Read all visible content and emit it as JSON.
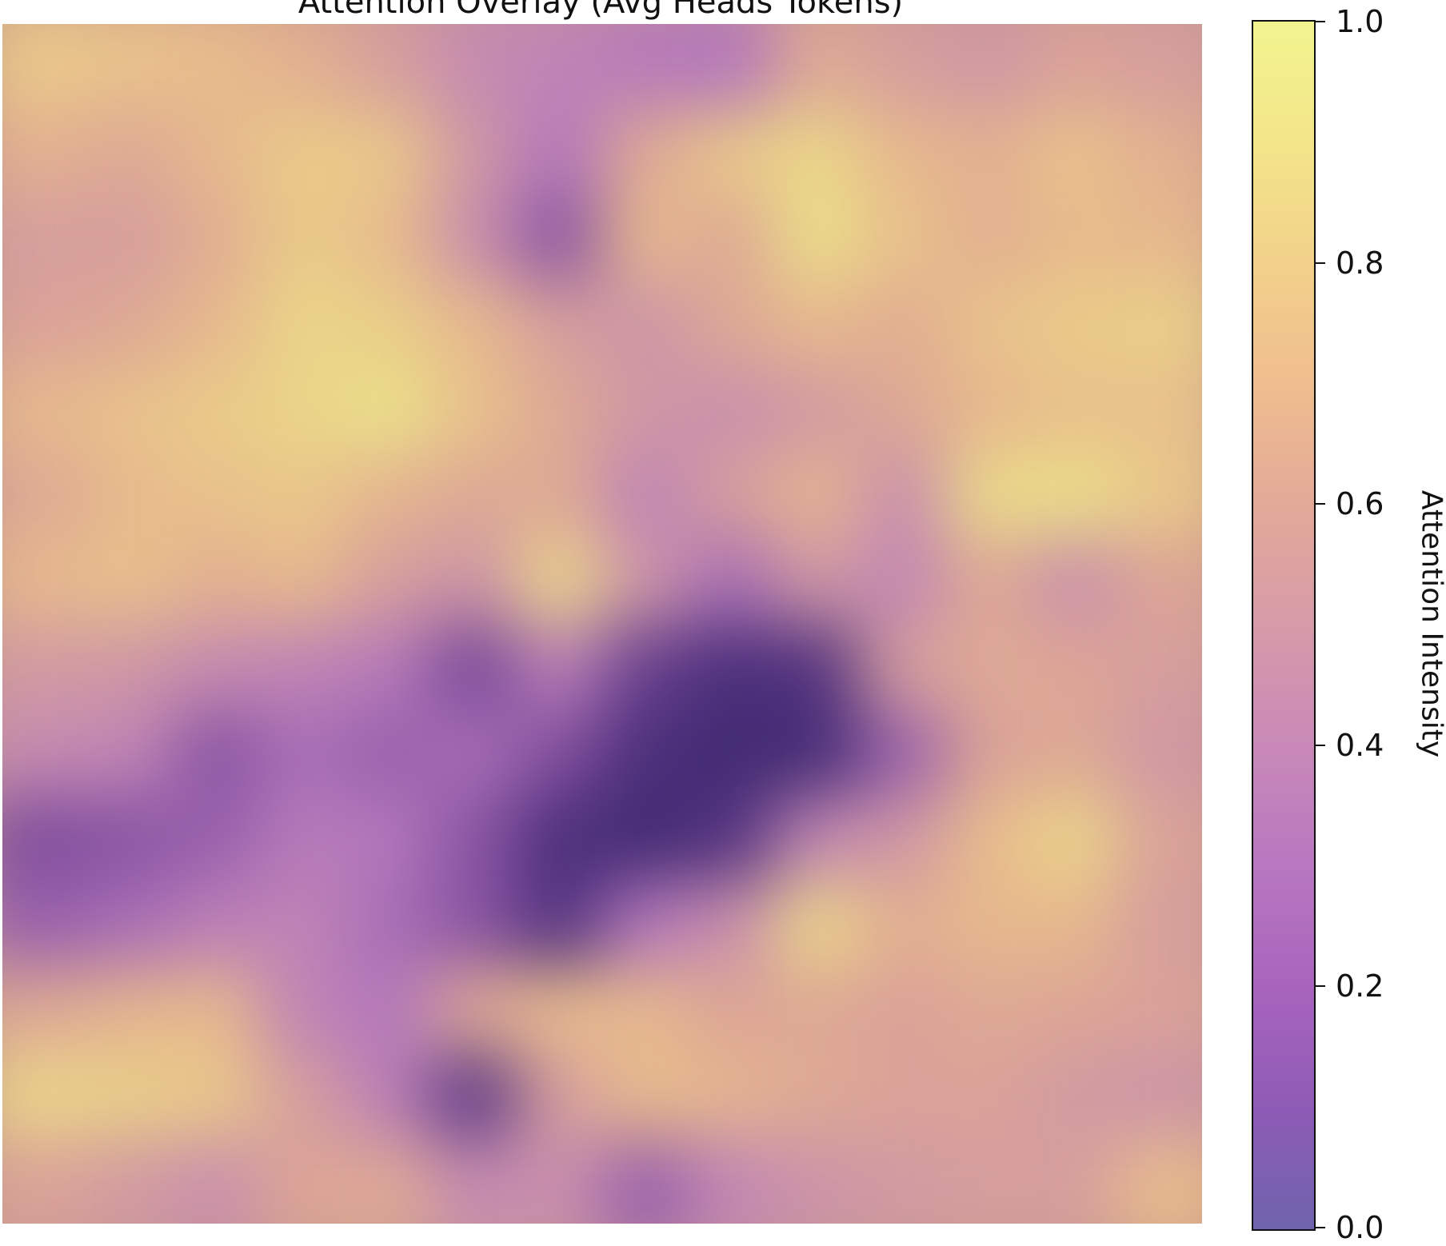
{
  "chart_data": {
    "type": "heatmap",
    "title": "Attention Overlay (Avg Heads Tokens)",
    "colorbar": {
      "label": "Attention Intensity",
      "range": [
        0.0,
        1.0
      ],
      "ticks": [
        "0.0",
        "0.2",
        "0.4",
        "0.6",
        "0.8",
        "1.0"
      ],
      "colormap": [
        "#6f63ad",
        "#8e5bb6",
        "#a864bd",
        "#b877c0",
        "#c889b8",
        "#d69aa8",
        "#e3a998",
        "#efbd8f",
        "#f2d18a",
        "#f3e58a",
        "#f1f58e"
      ]
    },
    "grid_rows": 14,
    "grid_cols": 14,
    "values": [
      [
        0.78,
        0.75,
        0.72,
        0.66,
        0.55,
        0.42,
        0.38,
        0.32,
        0.3,
        0.62,
        0.55,
        0.5,
        0.58,
        0.55
      ],
      [
        0.66,
        0.62,
        0.7,
        0.8,
        0.78,
        0.5,
        0.3,
        0.62,
        0.78,
        0.86,
        0.7,
        0.66,
        0.75,
        0.66
      ],
      [
        0.55,
        0.55,
        0.65,
        0.8,
        0.72,
        0.45,
        0.22,
        0.7,
        0.62,
        0.9,
        0.75,
        0.66,
        0.72,
        0.7
      ],
      [
        0.58,
        0.62,
        0.7,
        0.85,
        0.82,
        0.7,
        0.55,
        0.48,
        0.62,
        0.7,
        0.65,
        0.75,
        0.8,
        0.82
      ],
      [
        0.7,
        0.75,
        0.8,
        0.85,
        0.92,
        0.75,
        0.62,
        0.5,
        0.45,
        0.52,
        0.62,
        0.7,
        0.75,
        0.75
      ],
      [
        0.62,
        0.72,
        0.75,
        0.78,
        0.68,
        0.62,
        0.62,
        0.38,
        0.55,
        0.68,
        0.45,
        0.88,
        0.9,
        0.78
      ],
      [
        0.7,
        0.74,
        0.66,
        0.7,
        0.55,
        0.48,
        0.85,
        0.48,
        0.28,
        0.5,
        0.4,
        0.62,
        0.45,
        0.6
      ],
      [
        0.52,
        0.5,
        0.42,
        0.38,
        0.32,
        0.18,
        0.35,
        0.15,
        0.08,
        0.1,
        0.55,
        0.62,
        0.6,
        0.55
      ],
      [
        0.42,
        0.38,
        0.22,
        0.28,
        0.25,
        0.28,
        0.2,
        0.08,
        0.05,
        0.06,
        0.25,
        0.58,
        0.62,
        0.5
      ],
      [
        0.2,
        0.22,
        0.25,
        0.32,
        0.3,
        0.22,
        0.08,
        0.05,
        0.1,
        0.4,
        0.5,
        0.72,
        0.85,
        0.58
      ],
      [
        0.25,
        0.28,
        0.35,
        0.38,
        0.28,
        0.22,
        0.1,
        0.3,
        0.45,
        0.85,
        0.65,
        0.7,
        0.7,
        0.55
      ],
      [
        0.62,
        0.68,
        0.7,
        0.38,
        0.3,
        0.62,
        0.72,
        0.7,
        0.6,
        0.62,
        0.58,
        0.62,
        0.6,
        0.58
      ],
      [
        0.85,
        0.82,
        0.78,
        0.55,
        0.35,
        0.12,
        0.55,
        0.72,
        0.68,
        0.62,
        0.58,
        0.58,
        0.52,
        0.48
      ],
      [
        0.58,
        0.52,
        0.45,
        0.6,
        0.62,
        0.42,
        0.45,
        0.25,
        0.4,
        0.48,
        0.52,
        0.55,
        0.55,
        0.72
      ]
    ]
  }
}
